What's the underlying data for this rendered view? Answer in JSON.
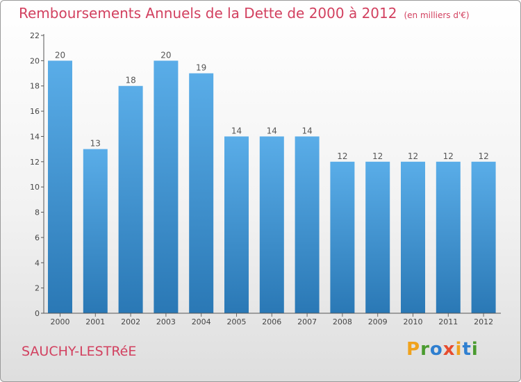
{
  "title": "Remboursements Annuels de la Dette de 2000 à 2012",
  "subtitle": "(en milliers d'€)",
  "city": "SAUCHY-LESTRéE",
  "brand": {
    "letters": [
      "P",
      "r",
      "o",
      "x",
      "i",
      "t",
      "i"
    ],
    "colors": [
      "#f0a21d",
      "#4a9b2f",
      "#2f7fd0",
      "#e74c2e",
      "#f0a21d",
      "#2f7fd0",
      "#4a9b2f"
    ]
  },
  "colors": {
    "bar_top": "#5aade8",
    "bar_bottom": "#2a78b5",
    "accent": "#d2405f"
  },
  "chart_data": {
    "type": "bar",
    "title": "Remboursements Annuels de la Dette de 2000 à 2012",
    "xlabel": "",
    "ylabel": "",
    "categories": [
      "2000",
      "2001",
      "2002",
      "2003",
      "2004",
      "2005",
      "2006",
      "2007",
      "2008",
      "2009",
      "2010",
      "2011",
      "2012"
    ],
    "values": [
      20,
      13,
      18,
      20,
      19,
      14,
      14,
      14,
      12,
      12,
      12,
      12,
      12
    ],
    "ylim": [
      0,
      22
    ],
    "yticks": [
      0,
      2,
      4,
      6,
      8,
      10,
      12,
      14,
      16,
      18,
      20,
      22
    ],
    "grid": false
  }
}
